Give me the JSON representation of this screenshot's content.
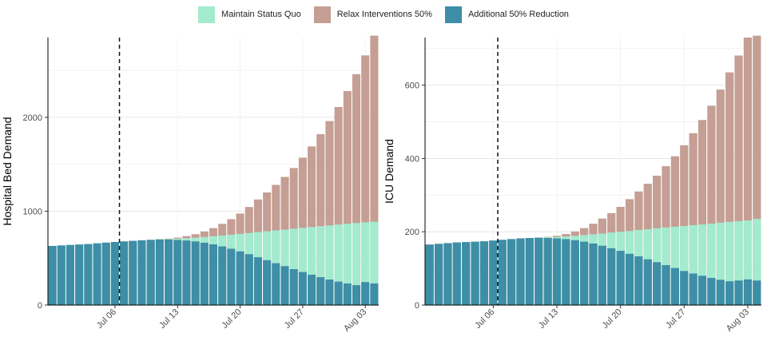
{
  "legend": [
    {
      "key": "maintain",
      "label": "Maintain Status Quo",
      "color": "#a3ebcf"
    },
    {
      "key": "relax",
      "label": "Relax Interventions 50%",
      "color": "#c59e94"
    },
    {
      "key": "reduce",
      "label": "Additional 50% Reduction",
      "color": "#3d8ea6"
    }
  ],
  "chart_data": [
    {
      "type": "bar",
      "stacked": "overlay",
      "ylabel": "Hospital Bed Demand",
      "xlabel": "",
      "ylim": [
        0,
        2850
      ],
      "yticks": [
        0,
        1000,
        2000
      ],
      "xtick_labels": [
        "Jul 06",
        "Jul 13",
        "Jul 20",
        "Jul 27",
        "Aug 03"
      ],
      "xtick_dates": [
        "2020-07-06",
        "2020-07-13",
        "2020-07-20",
        "2020-07-27",
        "2020-08-03"
      ],
      "vline_date": "2020-07-07",
      "dates": [
        "2020-06-29",
        "2020-06-30",
        "2020-07-01",
        "2020-07-02",
        "2020-07-03",
        "2020-07-04",
        "2020-07-05",
        "2020-07-06",
        "2020-07-07",
        "2020-07-08",
        "2020-07-09",
        "2020-07-10",
        "2020-07-11",
        "2020-07-12",
        "2020-07-13",
        "2020-07-14",
        "2020-07-15",
        "2020-07-16",
        "2020-07-17",
        "2020-07-18",
        "2020-07-19",
        "2020-07-20",
        "2020-07-21",
        "2020-07-22",
        "2020-07-23",
        "2020-07-24",
        "2020-07-25",
        "2020-07-26",
        "2020-07-27",
        "2020-07-28",
        "2020-07-29",
        "2020-07-30",
        "2020-07-31",
        "2020-08-01",
        "2020-08-02",
        "2020-08-03",
        "2020-08-04"
      ],
      "series": [
        {
          "name": "Relax Interventions 50%",
          "values": [
            630,
            635,
            640,
            645,
            650,
            658,
            665,
            672,
            678,
            684,
            690,
            695,
            700,
            708,
            718,
            735,
            755,
            785,
            820,
            865,
            915,
            975,
            1045,
            1125,
            1200,
            1280,
            1365,
            1460,
            1570,
            1690,
            1820,
            1960,
            2110,
            2280,
            2460,
            2660,
            2870
          ]
        },
        {
          "name": "Maintain Status Quo",
          "values": [
            630,
            635,
            640,
            645,
            650,
            658,
            665,
            672,
            678,
            684,
            690,
            695,
            700,
            703,
            707,
            712,
            718,
            725,
            733,
            741,
            750,
            759,
            768,
            777,
            786,
            795,
            804,
            813,
            822,
            831,
            840,
            849,
            858,
            866,
            874,
            882,
            888
          ]
        },
        {
          "name": "Additional 50% Reduction",
          "values": [
            630,
            635,
            640,
            645,
            650,
            658,
            665,
            672,
            678,
            684,
            690,
            695,
            700,
            698,
            694,
            688,
            678,
            664,
            647,
            625,
            600,
            572,
            542,
            510,
            478,
            446,
            415,
            383,
            352,
            324,
            297,
            272,
            250,
            230,
            212,
            245,
            230
          ]
        }
      ]
    },
    {
      "type": "bar",
      "stacked": "overlay",
      "ylabel": "ICU Demand",
      "xlabel": "",
      "ylim": [
        0,
        730
      ],
      "yticks": [
        0,
        200,
        400,
        600
      ],
      "xtick_labels": [
        "Jul 06",
        "Jul 13",
        "Jul 20",
        "Jul 27",
        "Aug 03"
      ],
      "xtick_dates": [
        "2020-07-06",
        "2020-07-13",
        "2020-07-20",
        "2020-07-27",
        "2020-08-03"
      ],
      "vline_date": "2020-07-07",
      "dates": [
        "2020-06-29",
        "2020-06-30",
        "2020-07-01",
        "2020-07-02",
        "2020-07-03",
        "2020-07-04",
        "2020-07-05",
        "2020-07-06",
        "2020-07-07",
        "2020-07-08",
        "2020-07-09",
        "2020-07-10",
        "2020-07-11",
        "2020-07-12",
        "2020-07-13",
        "2020-07-14",
        "2020-07-15",
        "2020-07-16",
        "2020-07-17",
        "2020-07-18",
        "2020-07-19",
        "2020-07-20",
        "2020-07-21",
        "2020-07-22",
        "2020-07-23",
        "2020-07-24",
        "2020-07-25",
        "2020-07-26",
        "2020-07-27",
        "2020-07-28",
        "2020-07-29",
        "2020-07-30",
        "2020-07-31",
        "2020-08-01",
        "2020-08-02",
        "2020-08-03",
        "2020-08-04"
      ],
      "series": [
        {
          "name": "Relax Interventions 50%",
          "values": [
            165,
            167,
            169,
            171,
            172,
            173,
            174,
            176,
            178,
            180,
            182,
            183,
            184,
            186,
            189,
            194,
            201,
            210,
            222,
            236,
            251,
            268,
            289,
            310,
            331,
            353,
            379,
            406,
            436,
            469,
            505,
            544,
            588,
            635,
            681,
            730,
            735
          ]
        },
        {
          "name": "Maintain Status Quo",
          "values": [
            165,
            167,
            169,
            171,
            172,
            173,
            174,
            176,
            178,
            180,
            182,
            183,
            184,
            185,
            186,
            187,
            189,
            191,
            193,
            195,
            198,
            200,
            202,
            205,
            207,
            210,
            212,
            214,
            216,
            218,
            220,
            222,
            225,
            227,
            229,
            231,
            235
          ]
        },
        {
          "name": "Additional 50% Reduction",
          "values": [
            165,
            167,
            169,
            171,
            172,
            173,
            174,
            176,
            178,
            180,
            182,
            183,
            184,
            183,
            182,
            180,
            177,
            173,
            168,
            162,
            155,
            148,
            140,
            133,
            125,
            117,
            109,
            101,
            93,
            86,
            80,
            74,
            69,
            65,
            67,
            70,
            67
          ]
        }
      ]
    }
  ]
}
